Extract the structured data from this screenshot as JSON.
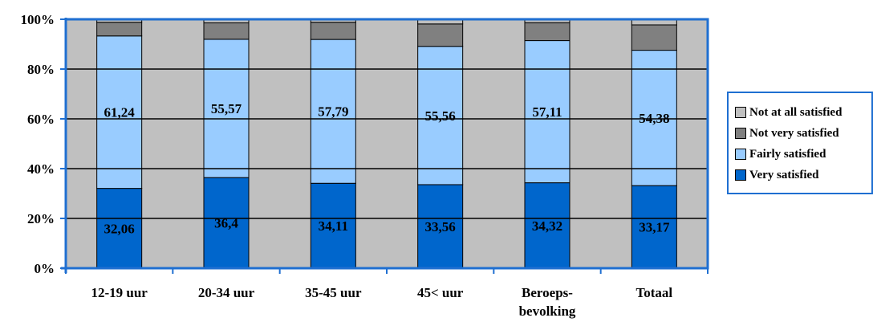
{
  "chart_data": {
    "type": "bar",
    "stacked": true,
    "percent_stacked": true,
    "categories": [
      [
        "12-19 uur"
      ],
      [
        "20-34 uur"
      ],
      [
        "35-45 uur"
      ],
      [
        "45< uur"
      ],
      [
        "Beroeps-",
        "bevolking"
      ],
      [
        "Totaal"
      ]
    ],
    "series": [
      {
        "name": "Very satisfied",
        "color": "#0066cc",
        "values": [
          32.06,
          36.4,
          34.11,
          33.56,
          34.32,
          33.17
        ],
        "labels": [
          "32,06",
          "36,4",
          "34,11",
          "33,56",
          "34,32",
          "33,17"
        ]
      },
      {
        "name": "Fairly satisfied",
        "color": "#99ccff",
        "values": [
          61.24,
          55.57,
          57.79,
          55.56,
          57.11,
          54.38
        ],
        "labels": [
          "61,24",
          "55,57",
          "57,79",
          "55,56",
          "57,11",
          "54,38"
        ]
      },
      {
        "name": "Not very satisfied",
        "color": "#808080",
        "values": [
          5.5,
          6.6,
          6.9,
          9.0,
          7.2,
          10.2
        ]
      },
      {
        "name": "Not at all satisfied",
        "color": "#c0c0c0",
        "values": [
          1.2,
          1.43,
          1.2,
          1.88,
          1.37,
          2.25
        ]
      }
    ],
    "yticks": [
      "0%",
      "20%",
      "40%",
      "60%",
      "80%",
      "100%"
    ],
    "ylim": [
      0,
      100
    ],
    "grid": true,
    "plot_background": "#c0c0c0",
    "border_color": "#1f6fd1",
    "legend_position": "right",
    "legend_order": [
      "Not at all satisfied",
      "Not very satisfied",
      "Fairly satisfied",
      "Very satisfied"
    ]
  }
}
